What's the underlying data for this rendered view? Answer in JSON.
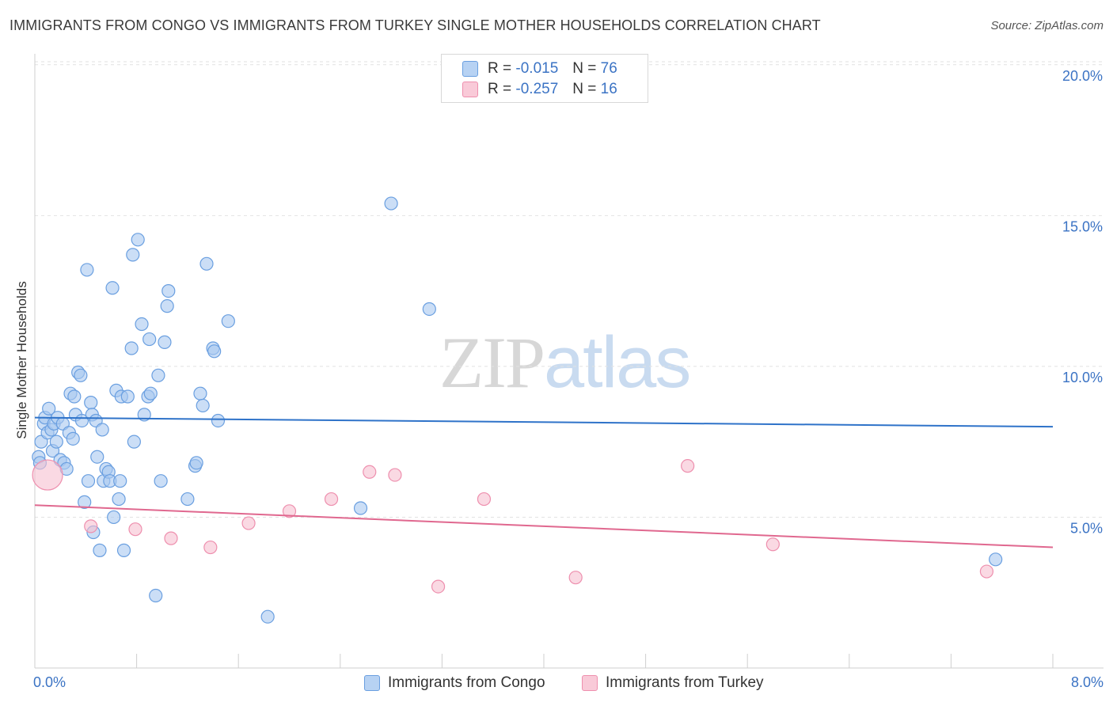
{
  "title": "IMMIGRANTS FROM CONGO VS IMMIGRANTS FROM TURKEY SINGLE MOTHER HOUSEHOLDS CORRELATION CHART",
  "source": "Source: ZipAtlas.com",
  "watermark": {
    "zip": "ZIP",
    "atlas": "atlas"
  },
  "legend": {
    "rows": [
      {
        "r_label": "R =",
        "r_value": "-0.015",
        "n_label": "N =",
        "n_value": "76"
      },
      {
        "r_label": "R =",
        "r_value": "-0.257",
        "n_label": "N =",
        "n_value": "16"
      }
    ]
  },
  "colors": {
    "congo_fill": "#a9c8f0",
    "congo_stroke": "#6a9fe0",
    "congo_line": "#2f73c9",
    "turkey_fill": "#f7bfd0",
    "turkey_stroke": "#ee8fae",
    "turkey_line": "#e0688f",
    "tick_text": "#3b73c4",
    "grid": "#e2e2e2"
  },
  "chart_data": {
    "type": "scatter",
    "title": "IMMIGRANTS FROM CONGO VS IMMIGRANTS FROM TURKEY SINGLE MOTHER HOUSEHOLDS CORRELATION CHART",
    "xlabel": "",
    "ylabel": "Single Mother Households",
    "xlim": [
      0,
      8
    ],
    "ylim": [
      0,
      20.5
    ],
    "x_tick_labels": [
      "0.0%",
      "8.0%"
    ],
    "y_ticks": [
      5,
      10,
      15,
      20
    ],
    "y_tick_labels": [
      "5.0%",
      "10.0%",
      "15.0%",
      "20.0%"
    ],
    "grid": true,
    "legend_position": "top-center",
    "series": [
      {
        "name": "Immigrants from Congo",
        "R": -0.015,
        "N": 76,
        "trend": {
          "x": [
            0,
            8
          ],
          "y": [
            8.3,
            8.0
          ]
        },
        "points": [
          {
            "x": 0.03,
            "y": 7.0
          },
          {
            "x": 0.04,
            "y": 6.8
          },
          {
            "x": 0.05,
            "y": 7.5
          },
          {
            "x": 0.07,
            "y": 8.1
          },
          {
            "x": 0.08,
            "y": 8.3
          },
          {
            "x": 0.1,
            "y": 7.8
          },
          {
            "x": 0.11,
            "y": 8.6
          },
          {
            "x": 0.13,
            "y": 7.9
          },
          {
            "x": 0.14,
            "y": 7.2
          },
          {
            "x": 0.15,
            "y": 8.1
          },
          {
            "x": 0.17,
            "y": 7.5
          },
          {
            "x": 0.18,
            "y": 8.3
          },
          {
            "x": 0.2,
            "y": 6.9
          },
          {
            "x": 0.22,
            "y": 8.1
          },
          {
            "x": 0.23,
            "y": 6.8
          },
          {
            "x": 0.25,
            "y": 6.6
          },
          {
            "x": 0.27,
            "y": 7.8
          },
          {
            "x": 0.28,
            "y": 9.1
          },
          {
            "x": 0.3,
            "y": 7.6
          },
          {
            "x": 0.31,
            "y": 9.0
          },
          {
            "x": 0.32,
            "y": 8.4
          },
          {
            "x": 0.34,
            "y": 9.8
          },
          {
            "x": 0.36,
            "y": 9.7
          },
          {
            "x": 0.37,
            "y": 8.2
          },
          {
            "x": 0.39,
            "y": 5.5
          },
          {
            "x": 0.41,
            "y": 13.2
          },
          {
            "x": 0.42,
            "y": 6.2
          },
          {
            "x": 0.44,
            "y": 8.8
          },
          {
            "x": 0.45,
            "y": 8.4
          },
          {
            "x": 0.46,
            "y": 4.5
          },
          {
            "x": 0.48,
            "y": 8.2
          },
          {
            "x": 0.49,
            "y": 7.0
          },
          {
            "x": 0.51,
            "y": 3.9
          },
          {
            "x": 0.53,
            "y": 7.9
          },
          {
            "x": 0.54,
            "y": 6.2
          },
          {
            "x": 0.56,
            "y": 6.6
          },
          {
            "x": 0.58,
            "y": 6.5
          },
          {
            "x": 0.59,
            "y": 6.2
          },
          {
            "x": 0.61,
            "y": 12.6
          },
          {
            "x": 0.62,
            "y": 5.0
          },
          {
            "x": 0.64,
            "y": 9.2
          },
          {
            "x": 0.66,
            "y": 5.6
          },
          {
            "x": 0.67,
            "y": 6.2
          },
          {
            "x": 0.68,
            "y": 9.0
          },
          {
            "x": 0.7,
            "y": 3.9
          },
          {
            "x": 0.73,
            "y": 9.0
          },
          {
            "x": 0.76,
            "y": 10.6
          },
          {
            "x": 0.77,
            "y": 13.7
          },
          {
            "x": 0.78,
            "y": 7.5
          },
          {
            "x": 0.81,
            "y": 14.2
          },
          {
            "x": 0.84,
            "y": 11.4
          },
          {
            "x": 0.86,
            "y": 8.4
          },
          {
            "x": 0.89,
            "y": 9.0
          },
          {
            "x": 0.9,
            "y": 10.9
          },
          {
            "x": 0.91,
            "y": 9.1
          },
          {
            "x": 0.95,
            "y": 2.4
          },
          {
            "x": 0.97,
            "y": 9.7
          },
          {
            "x": 0.99,
            "y": 6.2
          },
          {
            "x": 1.02,
            "y": 10.8
          },
          {
            "x": 1.04,
            "y": 12.0
          },
          {
            "x": 1.05,
            "y": 12.5
          },
          {
            "x": 1.2,
            "y": 5.6
          },
          {
            "x": 1.26,
            "y": 6.7
          },
          {
            "x": 1.27,
            "y": 6.8
          },
          {
            "x": 1.3,
            "y": 9.1
          },
          {
            "x": 1.32,
            "y": 8.7
          },
          {
            "x": 1.35,
            "y": 13.4
          },
          {
            "x": 1.4,
            "y": 10.6
          },
          {
            "x": 1.41,
            "y": 10.5
          },
          {
            "x": 1.44,
            "y": 8.2
          },
          {
            "x": 1.52,
            "y": 11.5
          },
          {
            "x": 1.83,
            "y": 1.7
          },
          {
            "x": 2.56,
            "y": 5.3
          },
          {
            "x": 2.8,
            "y": 15.4
          },
          {
            "x": 3.1,
            "y": 11.9
          },
          {
            "x": 7.55,
            "y": 3.6
          }
        ]
      },
      {
        "name": "Immigrants from Turkey",
        "R": -0.257,
        "N": 16,
        "trend": {
          "x": [
            0,
            8
          ],
          "y": [
            5.4,
            4.0
          ]
        },
        "points": [
          {
            "x": 0.1,
            "y": 6.4,
            "large": true
          },
          {
            "x": 0.44,
            "y": 4.7
          },
          {
            "x": 0.79,
            "y": 4.6
          },
          {
            "x": 1.07,
            "y": 4.3
          },
          {
            "x": 1.38,
            "y": 4.0
          },
          {
            "x": 1.68,
            "y": 4.8
          },
          {
            "x": 2.0,
            "y": 5.2
          },
          {
            "x": 2.33,
            "y": 5.6
          },
          {
            "x": 2.63,
            "y": 6.5
          },
          {
            "x": 2.83,
            "y": 6.4
          },
          {
            "x": 3.17,
            "y": 2.7
          },
          {
            "x": 3.53,
            "y": 5.6
          },
          {
            "x": 4.25,
            "y": 3.0
          },
          {
            "x": 5.13,
            "y": 6.7
          },
          {
            "x": 5.8,
            "y": 4.1
          },
          {
            "x": 7.48,
            "y": 3.2
          }
        ]
      }
    ]
  }
}
